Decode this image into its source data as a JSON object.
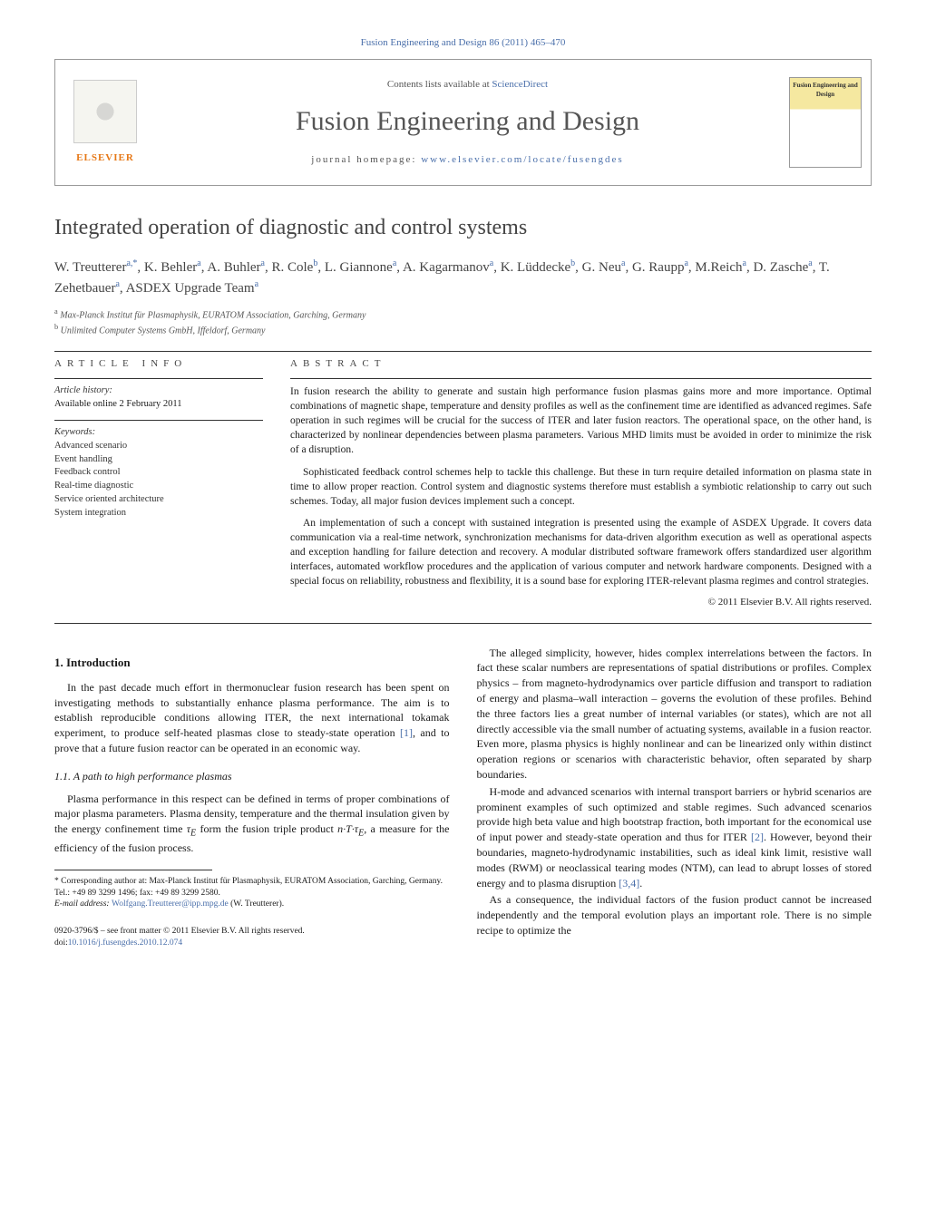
{
  "header_citation": "Fusion Engineering and Design 86 (2011) 465–470",
  "banner": {
    "publisher_name": "ELSEVIER",
    "contents_prefix": "Contents lists available at ",
    "contents_link": "ScienceDirect",
    "journal_title": "Fusion Engineering and Design",
    "homepage_prefix": "journal homepage: ",
    "homepage_url": "www.elsevier.com/locate/fusengdes",
    "cover_label": "Fusion Engineering and Design"
  },
  "article": {
    "title": "Integrated operation of diagnostic and control systems",
    "authors_html": "W. Treutterer<sup>a,*</sup>, K. Behler<sup>a</sup>, A. Buhler<sup>a</sup>, R. Cole<sup>b</sup>, L. Giannone<sup>a</sup>, A. Kagarmanov<sup>a</sup>, K. Lüddecke<sup>b</sup>, G. Neu<sup>a</sup>, G. Raupp<sup>a</sup>, M.Reich<sup>a</sup>, D. Zasche<sup>a</sup>, T. Zehetbauer<sup>a</sup>, ASDEX Upgrade Team<sup>a</sup>",
    "affiliations": {
      "a": "Max-Planck Institut für Plasmaphysik, EURATOM Association, Garching, Germany",
      "b": "Unlimited Computer Systems GmbH, Iffeldorf, Germany"
    }
  },
  "info": {
    "label": "article info",
    "history_heading": "Article history:",
    "history_line": "Available online 2 February 2011",
    "keywords_heading": "Keywords:",
    "keywords": [
      "Advanced scenario",
      "Event handling",
      "Feedback control",
      "Real-time diagnostic",
      "Service oriented architecture",
      "System integration"
    ]
  },
  "abstract": {
    "label": "abstract",
    "p1": "In fusion research the ability to generate and sustain high performance fusion plasmas gains more and more importance. Optimal combinations of magnetic shape, temperature and density profiles as well as the confinement time are identified as advanced regimes. Safe operation in such regimes will be crucial for the success of ITER and later fusion reactors. The operational space, on the other hand, is characterized by nonlinear dependencies between plasma parameters. Various MHD limits must be avoided in order to minimize the risk of a disruption.",
    "p2": "Sophisticated feedback control schemes help to tackle this challenge. But these in turn require detailed information on plasma state in time to allow proper reaction. Control system and diagnostic systems therefore must establish a symbiotic relationship to carry out such schemes. Today, all major fusion devices implement such a concept.",
    "p3": "An implementation of such a concept with sustained integration is presented using the example of ASDEX Upgrade. It covers data communication via a real-time network, synchronization mechanisms for data-driven algorithm execution as well as operational aspects and exception handling for failure detection and recovery. A modular distributed software framework offers standardized user algorithm interfaces, automated workflow procedures and the application of various computer and network hardware components. Designed with a special focus on reliability, robustness and flexibility, it is a sound base for exploring ITER-relevant plasma regimes and control strategies.",
    "copyright": "© 2011 Elsevier B.V. All rights reserved."
  },
  "body": {
    "sec1_heading": "1.  Introduction",
    "sec1_p1": "In the past decade much effort in thermonuclear fusion research has been spent on investigating methods to substantially enhance plasma performance. The aim is to establish reproducible conditions allowing ITER, the next international tokamak experiment, to produce self-heated plasmas close to steady-state operation [1], and to prove that a future fusion reactor can be operated in an economic way.",
    "sec11_heading": "1.1.  A path to high performance plasmas",
    "sec11_p1": "Plasma performance in this respect can be defined in terms of proper combinations of major plasma parameters. Plasma density, temperature and the thermal insulation given by the energy confinement time τE form the fusion triple product n·T·τE, a measure for the efficiency of the fusion process.",
    "col2_p1": "The alleged simplicity, however, hides complex interrelations between the factors. In fact these scalar numbers are representations of spatial distributions or profiles. Complex physics – from magneto-hydrodynamics over particle diffusion and transport to radiation of energy and plasma–wall interaction – governs the evolution of these profiles. Behind the three factors lies a great number of internal variables (or states), which are not all directly accessible via the small number of actuating systems, available in a fusion reactor. Even more, plasma physics is highly nonlinear and can be linearized only within distinct operation regions or scenarios with characteristic behavior, often separated by sharp boundaries.",
    "col2_p2": "H-mode and advanced scenarios with internal transport barriers or hybrid scenarios are prominent examples of such optimized and stable regimes. Such advanced scenarios provide high beta value and high bootstrap fraction, both important for the economical use of input power and steady-state operation and thus for ITER [2]. However, beyond their boundaries, magneto-hydrodynamic instabilities, such as ideal kink limit, resistive wall modes (RWM) or neoclassical tearing modes (NTM), can lead to abrupt losses of stored energy and to plasma disruption [3,4].",
    "col2_p3": "As a consequence, the individual factors of the fusion product cannot be increased independently and the temporal evolution plays an important role. There is no simple recipe to optimize the"
  },
  "footnotes": {
    "corresponding": "* Corresponding author at: Max-Planck Institut für Plasmaphysik, EURATOM Association, Garching, Germany. Tel.: +49 89 3299 1496; fax: +49 89 3299 2580.",
    "email_label": "E-mail address: ",
    "email": "Wolfgang.Treutterer@ipp.mpg.de",
    "email_suffix": " (W. Treutterer)."
  },
  "bottom": {
    "line1": "0920-3796/$ – see front matter © 2011 Elsevier B.V. All rights reserved.",
    "doi_prefix": "doi:",
    "doi": "10.1016/j.fusengdes.2010.12.074"
  },
  "refs": {
    "r1": "[1]",
    "r2": "[2]",
    "r34": "[3,4]"
  },
  "colors": {
    "link": "#4a6faa",
    "publisher": "#e67817",
    "text": "#1a1a1a",
    "muted": "#555555",
    "rule": "#333333"
  }
}
